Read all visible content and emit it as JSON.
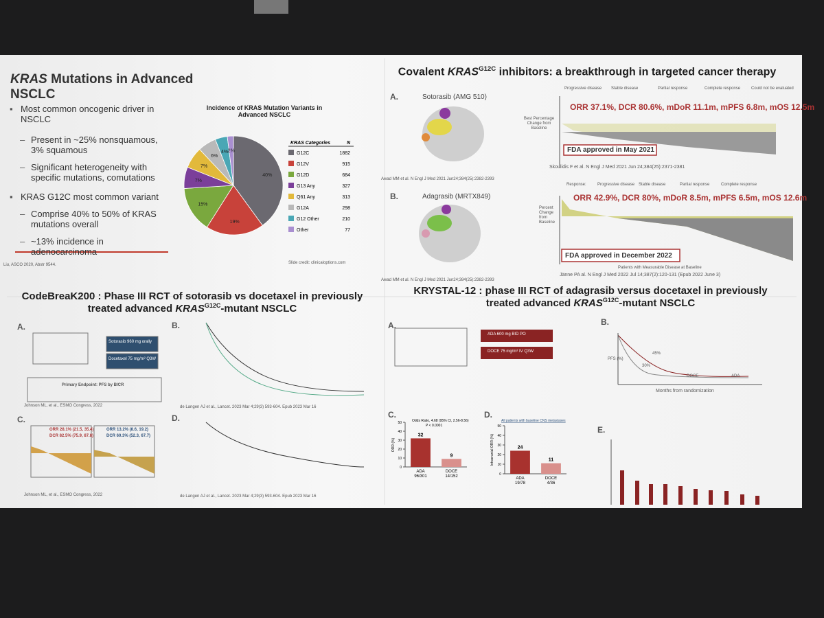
{
  "top_left": {
    "title_parts": [
      "KRAS",
      " Mutations in Advanced NSCLC"
    ],
    "bullets": [
      "Most common oncogenic driver in NSCLC",
      "Present in ~25% nonsquamous, 3% squamous",
      "Significant heterogeneity with specific mutations, comutations",
      "KRAS G12C most common variant",
      "Comprise 40% to 50% of KRAS mutations overall",
      "~13% incidence in adenocarcinoma"
    ],
    "pie": {
      "title": "Incidence of KRAS Mutation Variants in Advanced NSCLC",
      "values": [
        40,
        19,
        15,
        7,
        7,
        6,
        4,
        2
      ],
      "value_labels": [
        "40%",
        "19%",
        "15%",
        "7%",
        "7%",
        "6%",
        "4%",
        "2%"
      ],
      "colors": [
        "#6b6970",
        "#c8423a",
        "#7aa83e",
        "#7b3f9a",
        "#e2b93b",
        "#b9b9b9",
        "#4aa7b5",
        "#a98fd0"
      ]
    },
    "table": {
      "header": [
        "KRAS Categories",
        "N"
      ],
      "rows": [
        [
          "G12C",
          1882
        ],
        [
          "G12V",
          915
        ],
        [
          "G12D",
          684
        ],
        [
          "G13 Any",
          327
        ],
        [
          "Q61 Any",
          313
        ],
        [
          "G12A",
          298
        ],
        [
          "G12 Other",
          210
        ],
        [
          "Other",
          77
        ]
      ]
    },
    "footnote": "Liu, ASCO 2020, Abstr 9544.",
    "credit": "Slide credit: clinicaloptions.com"
  },
  "top_right": {
    "title_parts": [
      "Covalent ",
      "KRAS",
      "G12C",
      " inhibitors: a breakthrough in targeted cancer therapy"
    ],
    "panel_a": {
      "letter": "A.",
      "drug": "Sotorasib (AMG 510)",
      "citation": "Awad MM et al. N Engl J Med 2021 Jun24;384(25):2382-2393",
      "legend": [
        "Progressive disease",
        "Stable disease",
        "Partial response",
        "Complete response",
        "Could not be evaluated"
      ],
      "y_label": "Best Percentage Change from Baseline",
      "stats": "ORR 37.1%, DCR 80.6%, mDoR 11.1m, mPFS 6.8m, mOS 12.5m",
      "approval": "FDA approved in May 2021",
      "source": "Skoulidis F et al. N Engl J Med 2021 Jun 24;384(25):2371-2381"
    },
    "panel_b": {
      "letter": "B.",
      "drug": "Adagrasib (MRTX849)",
      "citation": "Awad MM et al. N Engl J Med 2021 Jun24;384(25):2382-2393",
      "legend_title": "Response:",
      "legend": [
        "Progressive disease",
        "Stable disease",
        "Partial response",
        "Complete response"
      ],
      "y_label": "Percent Change from Baseline",
      "stats": "ORR 42.9%, DCR 80%, mDoR 8.5m, mPFS 6.5m, mOS 12.6m",
      "approval": "FDA approved in December 2022",
      "x_label": "Patients with Measurable Disease at Baseline",
      "source": "Jänne PA al. N Engl J Med 2022 Jul 14;387(2):120-131 (Epub 2022 June 3)"
    }
  },
  "bottom_left": {
    "title_parts": [
      "CodeBreaK200 : Phase III RCT of sotorasib vs docetaxel in previously treated advanced ",
      "KRAS",
      "G12C",
      "-mutant NSCLC"
    ],
    "letters": [
      "A.",
      "B.",
      "C.",
      "D."
    ],
    "arm_1": "Sotorasib 960 mg orally",
    "arm_2": "Docetaxel 75 mg/m² Q3W",
    "endpoint": "Primary Endpoint: PFS by BICR",
    "stats_1": [
      "ORR 28.1% (21.5, 35.4)",
      "DCR 82.5% (75.9, 87.8)"
    ],
    "stats_2": [
      "ORR 13.2% (8.6, 19.2)",
      "DCR 60.3% (52.3, 67.7)"
    ],
    "source_1": "Johnson ML, et al., ESMO Congress, 2022",
    "source_2": "de Langen AJ et al., Lancet. 2023 Mar 4;29(3) 593-604. Epub 2023 Mar 16"
  },
  "bottom_right": {
    "title_parts": [
      "KRYSTAL-12 : phase III RCT of adagrasib versus docetaxel in previously treated advanced ",
      "KRAS",
      "G12C",
      "-mutant NSCLC"
    ],
    "letters": [
      "A.",
      "B.",
      "C.",
      "D.",
      "E."
    ],
    "arm_1": "ADA 600 mg BID PO",
    "arm_2": "DOCE 75 mg/m² IV Q3W",
    "km": {
      "y_label": "PFS (%)",
      "x_label": "Months from randomization",
      "arms": [
        "ADA",
        "DOCE"
      ],
      "marks": [
        "45%",
        "30%"
      ]
    },
    "chart_c": {
      "annotation": [
        "Odds Ratio, 4.68 (95% CI, 2.56-8.56)",
        "P < 0.0001"
      ],
      "y_label": "ORR (%)",
      "categories": [
        "ADA",
        "DOCE"
      ],
      "counts": [
        "96/301",
        "14/152"
      ],
      "values": [
        32,
        9
      ],
      "colors": [
        "#a8322e",
        "#d9908c"
      ],
      "ylim": [
        0,
        50
      ],
      "yticks": [
        0,
        10,
        20,
        30,
        40,
        50
      ]
    },
    "chart_d": {
      "annotation": "All patients with baseline CNS metastases",
      "y_label": "Intracranial ORR (%)",
      "categories": [
        "ADA",
        "DOCE"
      ],
      "counts": [
        "19/78",
        "4/36"
      ],
      "values": [
        24,
        11
      ],
      "colors": [
        "#a8322e",
        "#d9908c"
      ],
      "ylim": [
        0,
        50
      ],
      "yticks": [
        0,
        10,
        20,
        30,
        40,
        50
      ]
    }
  }
}
